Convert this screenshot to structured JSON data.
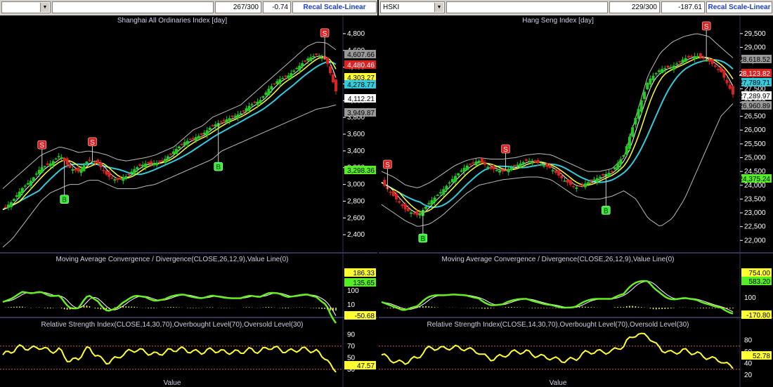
{
  "colors": {
    "bg": "#000000",
    "up": "#22cc22",
    "down": "#dd2222",
    "ma_fast": "#ffffff",
    "ma_mid": "#ffff33",
    "ma_slow": "#33ccdd",
    "band": "#bbbbbb",
    "macd": "#66ee22",
    "rsi": "#ffff33",
    "signal_s": "#e02020",
    "signal_b": "#33ee33",
    "panel_sep": "#6666aa"
  },
  "icons": {
    "dropdown": "chevron-down-icon"
  },
  "left": {
    "toolbar": {
      "symbol": "",
      "counter": "267/300",
      "change": "-0.74",
      "scale_button": "Recal Scale-Linear"
    },
    "title": "Shanghai All Ordinaries Index [day]",
    "macd_title": "Moving Average Convergence / Divergence(CLOSE,26,12,9),Value Line(0)",
    "rsi_title": "Relative Strength Index(CLOSE,14,30,70),Overbought Level(70),Oversold Level(30)",
    "value_label": "Value",
    "axis_ticks": [
      "4,800",
      "4,600",
      "4,400",
      "4,200",
      "4,000",
      "3,800",
      "3,600",
      "3,400",
      "3,200",
      "3,000",
      "2,800",
      "2,600",
      "2,400"
    ],
    "price_tags": [
      {
        "text": "4,607.66",
        "color": "#999999"
      },
      {
        "text": "4,480.46",
        "color": "#dd2222"
      },
      {
        "text": "4,303.27",
        "color": "#ffff33"
      },
      {
        "text": "4,278.77",
        "color": "#33ccdd"
      },
      {
        "text": "4,112.21",
        "color": "#ffffff"
      },
      {
        "text": "3,949.87",
        "color": "#999999"
      },
      {
        "text": "3,298.36",
        "color": "#55ee22"
      }
    ],
    "macd_ticks": [
      "200",
      "100",
      "10",
      "-50"
    ],
    "macd_tags": [
      {
        "text": "186.33",
        "color": "#ffff33"
      },
      {
        "text": "135.65",
        "color": "#55ee22"
      },
      {
        "text": "-50.68",
        "color": "#ffff33"
      }
    ],
    "rsi_ticks": [
      "90",
      "70",
      "50",
      "30"
    ],
    "rsi_tags": [
      {
        "text": "47.57",
        "color": "#ffff33"
      }
    ],
    "signals": [
      "S",
      "S",
      "S",
      "B",
      "B"
    ]
  },
  "right": {
    "toolbar": {
      "symbol": "HSKI",
      "counter": "229/300",
      "change": "-187.61",
      "scale_button": "Recal Scale-Linear"
    },
    "title": "Hang Seng Index [day]",
    "macd_title": "Moving Average Convergence / Divergence(CLOSE,26,12,9),Value Line(0)",
    "rsi_title": "Relative Strength Index(CLOSE,14,30,70),Overbought Level(70),Oversold Level(30)",
    "value_label": "Value",
    "axis_ticks": [
      "29,500",
      "29,000",
      "28,500",
      "28,000",
      "27,500",
      "27,000",
      "26,500",
      "26,000",
      "25,500",
      "25,000",
      "24,500",
      "24,000",
      "23,500",
      "23,000",
      "22,500",
      "22,000"
    ],
    "price_tags": [
      {
        "text": "28,618.52",
        "color": "#999999"
      },
      {
        "text": "28,123.82",
        "color": "#dd2222"
      },
      {
        "text": "27,789.71",
        "color": "#33ccdd"
      },
      {
        "text": "27,289.97",
        "color": "#ffffff"
      },
      {
        "text": "26,960.89",
        "color": "#999999"
      },
      {
        "text": "24,375.24",
        "color": "#55ee22"
      }
    ],
    "macd_ticks": [
      "754.00",
      "583.20",
      "100",
      "-170.80"
    ],
    "macd_tags": [
      {
        "text": "754.00",
        "color": "#ffff33"
      },
      {
        "text": "583.20",
        "color": "#55ee22"
      },
      {
        "text": "-170.80",
        "color": "#ffff33"
      }
    ],
    "rsi_ticks": [
      "80",
      "60",
      "40",
      "20"
    ],
    "rsi_tags": [
      {
        "text": "52.78",
        "color": "#ffff33"
      }
    ],
    "signals": [
      "S",
      "S",
      "S",
      "B",
      "B"
    ]
  },
  "chart_data": [
    {
      "type": "line",
      "title": "Shanghai All Ordinaries Index [day]",
      "ylim": [
        2200,
        4900
      ],
      "series": [
        {
          "name": "CLOSE",
          "values": [
            2700,
            2800,
            2950,
            3050,
            3200,
            3250,
            3350,
            3200,
            3150,
            3300,
            3250,
            3100,
            3050,
            3100,
            3200,
            3250,
            3250,
            3300,
            3400,
            3500,
            3550,
            3600,
            3700,
            3750,
            3800,
            3850,
            3950,
            4000,
            4150,
            4250,
            4300,
            4400,
            4500,
            4550,
            4480,
            4112
          ]
        },
        {
          "name": "Upper Band",
          "values": [
            2950,
            3050,
            3150,
            3250,
            3350,
            3400,
            3450,
            3420,
            3380,
            3400,
            3380,
            3350,
            3300,
            3280,
            3300,
            3320,
            3350,
            3400,
            3450,
            3550,
            3650,
            3700,
            3800,
            3850,
            3900,
            3950,
            4050,
            4150,
            4250,
            4350,
            4450,
            4550,
            4650,
            4700,
            4690,
            4607
          ]
        },
        {
          "name": "Lower Band",
          "values": [
            2250,
            2350,
            2500,
            2650,
            2800,
            2900,
            2950,
            3000,
            3000,
            3050,
            3050,
            3000,
            2950,
            2950,
            2950,
            2980,
            3000,
            3050,
            3100,
            3150,
            3200,
            3250,
            3300,
            3400,
            3450,
            3500,
            3550,
            3600,
            3650,
            3700,
            3750,
            3800,
            3850,
            3900,
            3920,
            3949
          ]
        }
      ]
    },
    {
      "type": "line",
      "title": "Hang Seng Index [day]",
      "ylim": [
        21600,
        29800
      ],
      "series": [
        {
          "name": "CLOSE",
          "values": [
            24100,
            23600,
            23100,
            22900,
            23400,
            23800,
            24300,
            24700,
            24900,
            24600,
            24500,
            24700,
            24900,
            24800,
            24600,
            24200,
            23900,
            24100,
            24300,
            24500,
            25100,
            26500,
            27800,
            28200,
            28300,
            28600,
            28700,
            28500,
            28123,
            27290
          ]
        },
        {
          "name": "Upper Band",
          "values": [
            24500,
            24300,
            24000,
            23900,
            24100,
            24400,
            24700,
            24900,
            25000,
            24950,
            24950,
            25000,
            25100,
            25150,
            25100,
            24900,
            24700,
            24500,
            24500,
            24600,
            25000,
            26500,
            28000,
            28800,
            29200,
            29400,
            29500,
            29400,
            29000,
            28618
          ]
        },
        {
          "name": "Lower Band",
          "values": [
            23300,
            23000,
            22700,
            22500,
            22600,
            22900,
            23300,
            23700,
            24000,
            24100,
            24200,
            24250,
            24300,
            24300,
            24200,
            23900,
            23600,
            23500,
            23500,
            23600,
            23800,
            23500,
            22800,
            22500,
            22800,
            23500,
            24500,
            25500,
            26500,
            26960
          ]
        }
      ]
    }
  ]
}
